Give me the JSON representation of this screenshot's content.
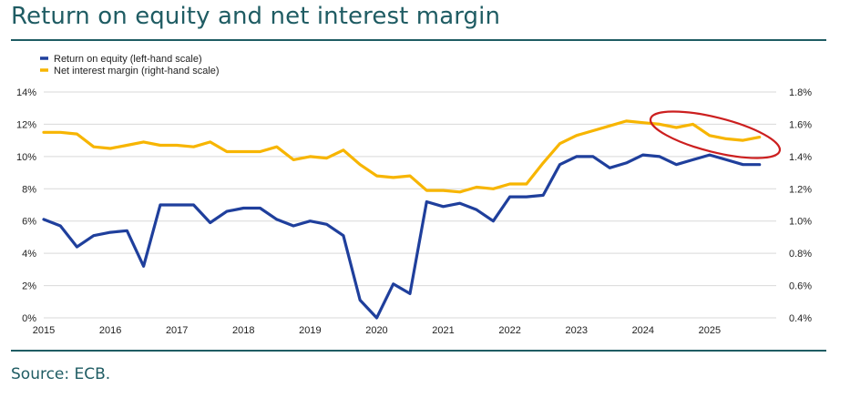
{
  "title": "Return on equity and net interest margin",
  "source": "Source: ECB.",
  "colors": {
    "roe": "#1f3f9c",
    "nim": "#f7b500",
    "accent": "#1f5c63",
    "highlight": "#cc1f1f",
    "grid": "#d9d9d9"
  },
  "chart_data": {
    "type": "line",
    "legend": [
      "Return on equity (left-hand scale)",
      "Net interest margin (right-hand scale)"
    ],
    "legend_position": "top-left",
    "grid": true,
    "x_ticks": [
      "2015",
      "2016",
      "2017",
      "2018",
      "2019",
      "2020",
      "2021",
      "2022",
      "2023",
      "2024",
      "2025"
    ],
    "y_left_ticks": [
      "0%",
      "2%",
      "4%",
      "6%",
      "8%",
      "10%",
      "12%",
      "14%"
    ],
    "y_right_ticks": [
      "0.4%",
      "0.6%",
      "0.8%",
      "1.0%",
      "1.2%",
      "1.4%",
      "1.6%",
      "1.8%"
    ],
    "ylim_left": [
      0,
      14
    ],
    "ylim_right": [
      0.4,
      1.8
    ],
    "xlim": [
      2015.0,
      2026.0
    ],
    "series": [
      {
        "name": "Return on equity (left-hand scale)",
        "axis": "left",
        "x": [
          2015.0,
          2015.25,
          2015.5,
          2015.75,
          2016.0,
          2016.25,
          2016.5,
          2016.75,
          2017.0,
          2017.25,
          2017.5,
          2017.75,
          2018.0,
          2018.25,
          2018.5,
          2018.75,
          2019.0,
          2019.25,
          2019.5,
          2019.75,
          2020.0,
          2020.25,
          2020.5,
          2020.75,
          2021.0,
          2021.25,
          2021.5,
          2021.75,
          2022.0,
          2022.25,
          2022.5,
          2022.75,
          2023.0,
          2023.25,
          2023.5,
          2023.75,
          2024.0,
          2024.25,
          2024.5,
          2024.75,
          2025.0,
          2025.25,
          2025.5,
          2025.75
        ],
        "values": [
          6.1,
          5.7,
          4.4,
          5.1,
          5.3,
          5.4,
          3.2,
          7.0,
          7.0,
          7.0,
          5.9,
          6.6,
          6.8,
          6.8,
          6.1,
          5.7,
          6.0,
          5.8,
          5.1,
          1.1,
          0.0,
          2.1,
          1.5,
          7.2,
          6.9,
          7.1,
          6.7,
          6.0,
          7.5,
          7.5,
          7.6,
          9.5,
          10.0,
          10.0,
          9.3,
          9.6,
          10.1,
          10.0,
          9.5,
          9.8,
          10.1,
          9.8,
          9.5,
          9.5
        ]
      },
      {
        "name": "Net interest margin (right-hand scale)",
        "axis": "right",
        "x": [
          2015.0,
          2015.25,
          2015.5,
          2015.75,
          2016.0,
          2016.25,
          2016.5,
          2016.75,
          2017.0,
          2017.25,
          2017.5,
          2017.75,
          2018.0,
          2018.25,
          2018.5,
          2018.75,
          2019.0,
          2019.25,
          2019.5,
          2019.75,
          2020.0,
          2020.25,
          2020.5,
          2020.75,
          2021.0,
          2021.25,
          2021.5,
          2021.75,
          2022.0,
          2022.25,
          2022.5,
          2022.75,
          2023.0,
          2023.25,
          2023.5,
          2023.75,
          2024.0,
          2024.25,
          2024.5,
          2024.75,
          2025.0,
          2025.25,
          2025.5,
          2025.75
        ],
        "values": [
          1.55,
          1.55,
          1.54,
          1.46,
          1.45,
          1.47,
          1.49,
          1.47,
          1.47,
          1.46,
          1.49,
          1.43,
          1.43,
          1.43,
          1.46,
          1.38,
          1.4,
          1.39,
          1.44,
          1.35,
          1.28,
          1.27,
          1.28,
          1.19,
          1.19,
          1.18,
          1.21,
          1.2,
          1.23,
          1.23,
          1.36,
          1.48,
          1.53,
          1.56,
          1.59,
          1.62,
          1.61,
          1.6,
          1.58,
          1.6,
          1.53,
          1.51,
          1.5,
          1.52
        ]
      }
    ]
  }
}
